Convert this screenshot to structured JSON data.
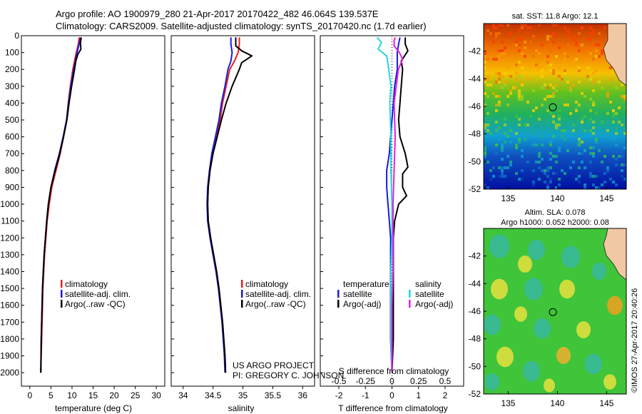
{
  "header": {
    "line1": "Argo profile: AO 1900979_280 21-Apr-2017 20170422_482 46.064S 139.537E",
    "line2": "Climatology: CARS2009. Satellite-adjusted climatology: synTS_20170420.nc (1.7d earlier)"
  },
  "colors": {
    "climatology": "#e8201c",
    "satellite": "#1a1ae0",
    "argo": "#000000",
    "salinity_satellite": "#22d8e0",
    "salinity_argo": "#e020e0"
  },
  "credit": {
    "line1": "US ARGO PROJECT",
    "line2": "PI: GREGORY C. JOHNSON"
  },
  "watermark": "©IMOS 27-Apr-2017 20:40:26",
  "chart_data": [
    {
      "type": "line",
      "xlabel": "temperature (deg C)",
      "xlim": [
        -2,
        32
      ],
      "ylim": [
        2080,
        0
      ],
      "x_ticks": [
        "0",
        "5",
        "10",
        "15",
        "20",
        "25",
        "30"
      ],
      "y_ticks": [
        "0",
        "100",
        "200",
        "300",
        "400",
        "500",
        "600",
        "700",
        "800",
        "900",
        "1000",
        "1100",
        "1200",
        "1300",
        "1400",
        "1500",
        "1600",
        "1700",
        "1800",
        "1900",
        "2000"
      ],
      "legend": [
        "climatology",
        "satellite-adj. clim.",
        "Argo(..raw -QC)"
      ],
      "series": [
        {
          "name": "climatology",
          "color": "#e8201c",
          "depth": [
            10,
            50,
            100,
            150,
            200,
            300,
            400,
            500,
            600,
            700,
            800,
            900,
            1000,
            1100,
            1200,
            1300,
            1400,
            1500,
            1600,
            1700,
            1800,
            1900,
            2000
          ],
          "values": [
            11.7,
            11.5,
            11.0,
            10.6,
            10.2,
            9.6,
            9.1,
            8.7,
            8.0,
            7.2,
            6.2,
            5.2,
            4.6,
            4.1,
            3.8,
            3.5,
            3.3,
            3.1,
            3.0,
            2.9,
            2.8,
            2.7,
            2.6
          ]
        },
        {
          "name": "satellite-adj. clim.",
          "color": "#1a1ae0",
          "depth": [
            10,
            50,
            100,
            150,
            200,
            300,
            400,
            500,
            600,
            700,
            800,
            900,
            1000,
            1100,
            1200,
            1300,
            1400,
            1500,
            1600,
            1700,
            1800,
            1900,
            2000
          ],
          "values": [
            12.0,
            11.7,
            11.2,
            10.8,
            10.4,
            9.7,
            9.2,
            8.7,
            7.9,
            7.0,
            5.9,
            5.0,
            4.4,
            4.0,
            3.7,
            3.4,
            3.2,
            3.0,
            2.9,
            2.8,
            2.7,
            2.65,
            2.6
          ]
        },
        {
          "name": "Argo(..raw -QC)",
          "color": "#000000",
          "depth": [
            10,
            40,
            80,
            110,
            150,
            200,
            300,
            400,
            500,
            600,
            700,
            800,
            900,
            1000,
            1100,
            1200,
            1300,
            1400,
            1500,
            1600,
            1700,
            1800,
            1900,
            2000
          ],
          "values": [
            12.2,
            12.0,
            12.1,
            11.4,
            10.9,
            10.6,
            9.9,
            9.3,
            8.8,
            8.0,
            7.1,
            6.0,
            5.0,
            4.4,
            4.0,
            3.7,
            3.4,
            3.2,
            3.0,
            2.9,
            2.8,
            2.7,
            2.65,
            2.6
          ]
        }
      ]
    },
    {
      "type": "line",
      "xlabel": "salinity",
      "xlim": [
        33.8,
        36.2
      ],
      "ylim": [
        2080,
        0
      ],
      "x_ticks": [
        "34",
        "34.5",
        "35",
        "35.5",
        "36"
      ],
      "legend": [
        "climatology",
        "satellite-adj. clim.",
        "Argo(..raw -QC)"
      ],
      "series": [
        {
          "name": "climatology",
          "color": "#e8201c",
          "depth": [
            10,
            50,
            100,
            150,
            200,
            300,
            400,
            500,
            600,
            700,
            800,
            900,
            1000,
            1100,
            1200,
            1300,
            1400,
            1500,
            1600,
            1700,
            1800,
            1900,
            2000
          ],
          "values": [
            34.94,
            34.94,
            34.92,
            34.86,
            34.78,
            34.72,
            34.66,
            34.62,
            34.56,
            34.5,
            34.45,
            34.42,
            34.41,
            34.42,
            34.46,
            34.51,
            34.56,
            34.6,
            34.63,
            34.66,
            34.68,
            34.7,
            34.71
          ]
        },
        {
          "name": "satellite-adj. clim.",
          "color": "#1a1ae0",
          "depth": [
            10,
            50,
            100,
            150,
            200,
            300,
            400,
            500,
            600,
            700,
            800,
            900,
            1000,
            1100,
            1200,
            1300,
            1400,
            1500,
            1600,
            1700,
            1800,
            1900,
            2000
          ],
          "values": [
            34.8,
            34.8,
            34.82,
            34.8,
            34.75,
            34.7,
            34.64,
            34.6,
            34.54,
            34.48,
            34.44,
            34.41,
            34.4,
            34.41,
            34.45,
            34.5,
            34.55,
            34.59,
            34.62,
            34.65,
            34.67,
            34.69,
            34.7
          ]
        },
        {
          "name": "Argo(..raw -QC)",
          "color": "#000000",
          "depth": [
            10,
            60,
            90,
            120,
            160,
            200,
            300,
            400,
            500,
            600,
            700,
            800,
            900,
            1000,
            1100,
            1200,
            1300,
            1400,
            1500,
            1600,
            1700,
            1800,
            1900,
            2000
          ],
          "values": [
            34.88,
            34.88,
            34.98,
            35.15,
            34.98,
            34.94,
            34.82,
            34.72,
            34.64,
            34.57,
            34.5,
            34.45,
            34.42,
            34.41,
            34.42,
            34.46,
            34.51,
            34.56,
            34.6,
            34.63,
            34.66,
            34.68,
            34.7,
            34.71
          ]
        }
      ]
    },
    {
      "type": "line",
      "xlabel": "T difference from climatology",
      "xlabel_top": "S difference from climatology",
      "xlim_T": [
        -2.7,
        2.7
      ],
      "xlim_S": [
        -0.675,
        0.675
      ],
      "ylim": [
        2080,
        0
      ],
      "x_ticks": [
        "-2",
        "-1",
        "0",
        "1",
        "2"
      ],
      "x_ticks_top": [
        "-0.5",
        "-0.25",
        "0",
        "0.25",
        "0.5"
      ],
      "legend_temperature_title": "temperature",
      "legend_salinity_title": "salinity",
      "legend_temperature": [
        "satellite",
        "Argo(-adj)"
      ],
      "legend_salinity": [
        "satellite",
        "Argo(-adj)"
      ],
      "series": [
        {
          "name": "satellite",
          "group": "temperature",
          "color": "#1a1ae0",
          "depth": [
            10,
            50,
            100,
            200,
            300,
            400,
            500,
            600,
            700,
            800,
            900,
            1000,
            1100,
            1200,
            1400,
            1600,
            1800,
            2000
          ],
          "values": [
            0.3,
            0.25,
            0.2,
            0.2,
            0.1,
            0.05,
            0.0,
            -0.05,
            -0.1,
            -0.2,
            -0.2,
            -0.15,
            -0.1,
            -0.05,
            -0.05,
            -0.05,
            -0.05,
            0.0
          ]
        },
        {
          "name": "Argo(-adj)",
          "group": "temperature",
          "color": "#000000",
          "depth": [
            10,
            50,
            90,
            150,
            200,
            300,
            400,
            500,
            600,
            700,
            780,
            820,
            900,
            950,
            1000,
            1100,
            1200,
            1400,
            1600,
            1800,
            2000
          ],
          "values": [
            0.5,
            0.5,
            0.6,
            0.35,
            0.4,
            0.35,
            0.3,
            0.25,
            0.3,
            0.5,
            0.6,
            0.4,
            0.4,
            0.55,
            0.25,
            0.1,
            0.05,
            0.05,
            0.05,
            0.05,
            0.0
          ]
        },
        {
          "name": "satellite",
          "group": "salinity",
          "color": "#22d8e0",
          "depth": [
            10,
            40,
            80,
            120,
            200,
            300,
            400,
            600,
            800,
            1000,
            1200,
            1400,
            1600,
            1800,
            2000
          ],
          "values": [
            -0.14,
            -0.1,
            -0.13,
            -0.05,
            -0.03,
            -0.01,
            -0.02,
            -0.01,
            -0.01,
            0.0,
            0.0,
            -0.01,
            -0.01,
            -0.01,
            0.0
          ]
        },
        {
          "name": "Argo(-adj)",
          "group": "salinity",
          "color": "#e020e0",
          "depth": [
            10,
            30,
            60,
            100,
            140,
            200,
            300,
            400,
            600,
            800,
            1000,
            1200,
            1400,
            1600,
            1800,
            2000
          ],
          "values": [
            0.03,
            0.02,
            0.02,
            0.07,
            0.1,
            0.06,
            0.04,
            0.02,
            0.03,
            0.02,
            0.01,
            0.01,
            0.01,
            0.0,
            0.0,
            0.0
          ]
        }
      ]
    },
    {
      "type": "heatmap",
      "title": "sat. SST: 11.8 Argo: 12.1",
      "xlim": [
        132.5,
        147
      ],
      "ylim": [
        -52,
        -40
      ],
      "x_ticks": [
        "135",
        "140",
        "145"
      ],
      "y_ticks": [
        "-42",
        "-44",
        "-46",
        "-48",
        "-50",
        "-52"
      ],
      "marker": {
        "lon": 139.537,
        "lat": -46.064
      }
    },
    {
      "type": "heatmap",
      "title": "Altim. SLA: 0.078",
      "subtitle": "Argo h1000: 0.052 h2000: 0.08",
      "xlim": [
        132.5,
        147
      ],
      "ylim": [
        -52,
        -40
      ],
      "x_ticks": [
        "135",
        "140",
        "145"
      ],
      "y_ticks": [
        "-42",
        "-44",
        "-46",
        "-48",
        "-50",
        "-52"
      ],
      "marker": {
        "lon": 139.537,
        "lat": -46.064
      }
    }
  ]
}
